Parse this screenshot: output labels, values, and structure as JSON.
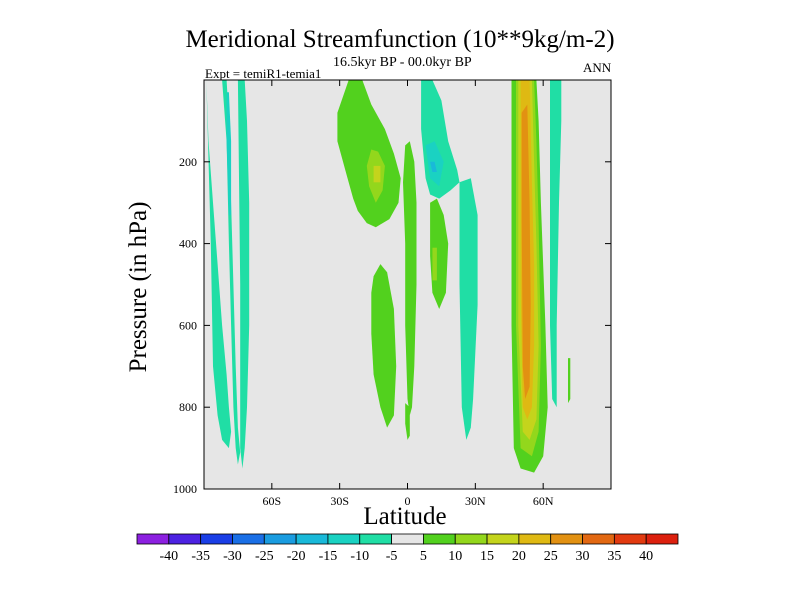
{
  "chart_data": {
    "type": "heatmap",
    "title": "Meridional Streamfunction (10**9kg/m-2)",
    "subtitle": "16.5kyr BP - 00.0kyr BP",
    "experiment": "Expt = temiR1-temia1",
    "season": "ANN",
    "xlabel": "Latitude",
    "ylabel": "Pressure (in hPa)",
    "xlim": [
      -90,
      90
    ],
    "ylim": [
      1000,
      0
    ],
    "y_reversed": true,
    "x_ticks": [
      {
        "value": -60,
        "label": "60S"
      },
      {
        "value": -30,
        "label": "30S"
      },
      {
        "value": 0,
        "label": "0"
      },
      {
        "value": 30,
        "label": "30N"
      },
      {
        "value": 60,
        "label": "60N"
      }
    ],
    "y_ticks": [
      {
        "value": 200,
        "label": "200"
      },
      {
        "value": 400,
        "label": "400"
      },
      {
        "value": 600,
        "label": "600"
      },
      {
        "value": 800,
        "label": "800"
      },
      {
        "value": 1000,
        "label": "1000"
      }
    ],
    "background_color": "#e6e6e6",
    "colorbar": {
      "labels": [
        "-40",
        "-35",
        "-30",
        "-25",
        "-20",
        "-15",
        "-10",
        "-5",
        "5",
        "10",
        "15",
        "20",
        "25",
        "30",
        "35",
        "40"
      ],
      "colors": [
        "#8c20e0",
        "#4c22e2",
        "#1a3ee6",
        "#1a6fe6",
        "#1a9ce0",
        "#19b9d9",
        "#1ad2c2",
        "#20dea5",
        "#e6e6e6",
        "#52d11e",
        "#93d71c",
        "#c4d41c",
        "#dfb913",
        "#e29112",
        "#e26812",
        "#e23a10",
        "#dc200e"
      ]
    },
    "cells": [
      {
        "name": "sh-polar-cell-a",
        "level": -5,
        "color": "#20dea5",
        "lat": [
          -89,
          -88,
          -86,
          -84,
          -82,
          -80,
          -79,
          -78,
          -79,
          -82,
          -84,
          -86,
          -87
        ],
        "p": [
          0,
          150,
          300,
          450,
          600,
          720,
          800,
          860,
          900,
          880,
          820,
          700,
          400
        ]
      },
      {
        "name": "sh-polar-cell-b",
        "level": -5,
        "color": "#20dea5",
        "lat": [
          -82,
          -80,
          -79,
          -78,
          -77,
          -76,
          -75,
          -74,
          -75,
          -76,
          -77,
          -78,
          -79,
          -80
        ],
        "p": [
          0,
          0,
          100,
          300,
          500,
          700,
          850,
          910,
          940,
          900,
          800,
          600,
          400,
          150
        ]
      },
      {
        "name": "sh-polar-cell-c",
        "level": -5,
        "color": "#20dea5",
        "lat": [
          -75,
          -72,
          -71,
          -70,
          -70,
          -71,
          -72,
          -73,
          -74,
          -74
        ],
        "p": [
          0,
          0,
          100,
          300,
          600,
          800,
          900,
          950,
          900,
          500
        ]
      },
      {
        "name": "sh-polar-cell-c-core",
        "level": -10,
        "color": "#1ad2c2",
        "lat": [
          -80,
          -79,
          -78,
          -78,
          -79,
          -80
        ],
        "p": [
          30,
          30,
          150,
          330,
          330,
          150
        ]
      },
      {
        "name": "tropical-sh-cell",
        "level": 5,
        "color": "#52d11e",
        "lat": [
          -31,
          -26,
          -20,
          -16,
          -10,
          -6,
          -3,
          -4,
          -8,
          -14,
          -18,
          -22,
          -24,
          -27,
          -31
        ],
        "p": [
          80,
          0,
          0,
          60,
          120,
          180,
          240,
          300,
          340,
          360,
          350,
          320,
          290,
          230,
          150
        ]
      },
      {
        "name": "tropical-sh-cell-core",
        "level": 10,
        "color": "#93d71c",
        "lat": [
          -16,
          -13,
          -10,
          -11,
          -14,
          -17,
          -18
        ],
        "p": [
          170,
          175,
          210,
          270,
          300,
          260,
          210
        ]
      },
      {
        "name": "tropical-sh-cell-inner",
        "level": 15,
        "color": "#c4d41c",
        "lat": [
          -15,
          -12,
          -12,
          -15
        ],
        "p": [
          210,
          210,
          250,
          250
        ]
      },
      {
        "name": "tropical-sh-lower",
        "level": 5,
        "color": "#52d11e",
        "lat": [
          -15,
          -12,
          -9,
          -6,
          -5,
          -6,
          -9,
          -12,
          -15,
          -16,
          -16
        ],
        "p": [
          480,
          450,
          470,
          560,
          700,
          820,
          850,
          800,
          720,
          620,
          520
        ]
      },
      {
        "name": "equatorial-narrow",
        "level": 5,
        "color": "#52d11e",
        "lat": [
          -1,
          1,
          3,
          4,
          4,
          3,
          2,
          1,
          0,
          -1,
          -1,
          -2
        ],
        "p": [
          160,
          150,
          200,
          300,
          500,
          700,
          800,
          820,
          780,
          600,
          400,
          250
        ]
      },
      {
        "name": "equatorial-lower-sliver",
        "level": 5,
        "color": "#52d11e",
        "lat": [
          -1,
          1,
          1,
          0,
          -1
        ],
        "p": [
          790,
          800,
          870,
          880,
          840
        ]
      },
      {
        "name": "nh-tropics-negative",
        "level": -5,
        "color": "#20dea5",
        "lat": [
          6,
          11,
          15,
          18,
          22,
          23,
          19,
          14,
          10,
          8,
          6
        ],
        "p": [
          0,
          0,
          50,
          150,
          220,
          250,
          270,
          290,
          280,
          240,
          120
        ]
      },
      {
        "name": "nh-tropics-negative-core",
        "level": -10,
        "color": "#1ad2c2",
        "lat": [
          8,
          12,
          16,
          14,
          10
        ],
        "p": [
          160,
          150,
          200,
          260,
          240
        ]
      },
      {
        "name": "nh-tropics-negative-inner",
        "level": -15,
        "color": "#19b9d9",
        "lat": [
          10,
          12,
          13,
          11
        ],
        "p": [
          200,
          200,
          225,
          225
        ]
      },
      {
        "name": "nh-tropics-positive",
        "level": 5,
        "color": "#52d11e",
        "lat": [
          10,
          13,
          16,
          18,
          17,
          14,
          11,
          10
        ],
        "p": [
          300,
          290,
          330,
          400,
          520,
          560,
          520,
          430
        ]
      },
      {
        "name": "nh-tropics-positive-core",
        "level": 10,
        "color": "#93d71c",
        "lat": [
          11,
          13,
          13,
          11
        ],
        "p": [
          410,
          410,
          490,
          490
        ]
      },
      {
        "name": "nh-subtropics-negative",
        "level": -5,
        "color": "#20dea5",
        "lat": [
          23,
          28,
          31,
          31,
          29,
          28,
          26,
          24,
          23
        ],
        "p": [
          250,
          240,
          330,
          550,
          780,
          850,
          880,
          800,
          500
        ]
      },
      {
        "name": "ferrel-cell-5",
        "level": 5,
        "color": "#52d11e",
        "lat": [
          46,
          57,
          58,
          59,
          61,
          62,
          60,
          56,
          50,
          47,
          46
        ],
        "p": [
          0,
          0,
          100,
          300,
          600,
          800,
          920,
          960,
          950,
          900,
          600
        ]
      },
      {
        "name": "ferrel-cell-10",
        "level": 10,
        "color": "#93d71c",
        "lat": [
          48,
          56,
          57,
          58,
          59,
          58,
          55,
          50,
          48
        ],
        "p": [
          0,
          0,
          150,
          350,
          650,
          860,
          920,
          900,
          600
        ]
      },
      {
        "name": "ferrel-cell-15",
        "level": 15,
        "color": "#c4d41c",
        "lat": [
          49,
          55,
          56,
          57,
          58,
          57,
          54,
          51,
          49
        ],
        "p": [
          0,
          0,
          200,
          400,
          650,
          830,
          880,
          860,
          600
        ]
      },
      {
        "name": "ferrel-cell-20",
        "level": 20,
        "color": "#dfb913",
        "lat": [
          50,
          54,
          55,
          56,
          56,
          55,
          53,
          51,
          50
        ],
        "p": [
          0,
          0,
          250,
          450,
          650,
          800,
          830,
          800,
          500
        ]
      },
      {
        "name": "ferrel-cell-25",
        "level": 25,
        "color": "#e29112",
        "lat": [
          50.5,
          53,
          54,
          54.5,
          54,
          52,
          51,
          50.5
        ],
        "p": [
          80,
          60,
          300,
          550,
          750,
          780,
          700,
          350
        ]
      },
      {
        "name": "nh-polar-cell",
        "level": -5,
        "color": "#20dea5",
        "lat": [
          63,
          68,
          68,
          67,
          66,
          66,
          64,
          63,
          63
        ],
        "p": [
          0,
          0,
          100,
          300,
          600,
          800,
          780,
          600,
          200
        ]
      },
      {
        "name": "nh-polar-right-sliver",
        "level": 5,
        "color": "#52d11e",
        "lat": [
          71,
          72,
          72,
          71
        ],
        "p": [
          680,
          680,
          780,
          790
        ]
      }
    ]
  }
}
